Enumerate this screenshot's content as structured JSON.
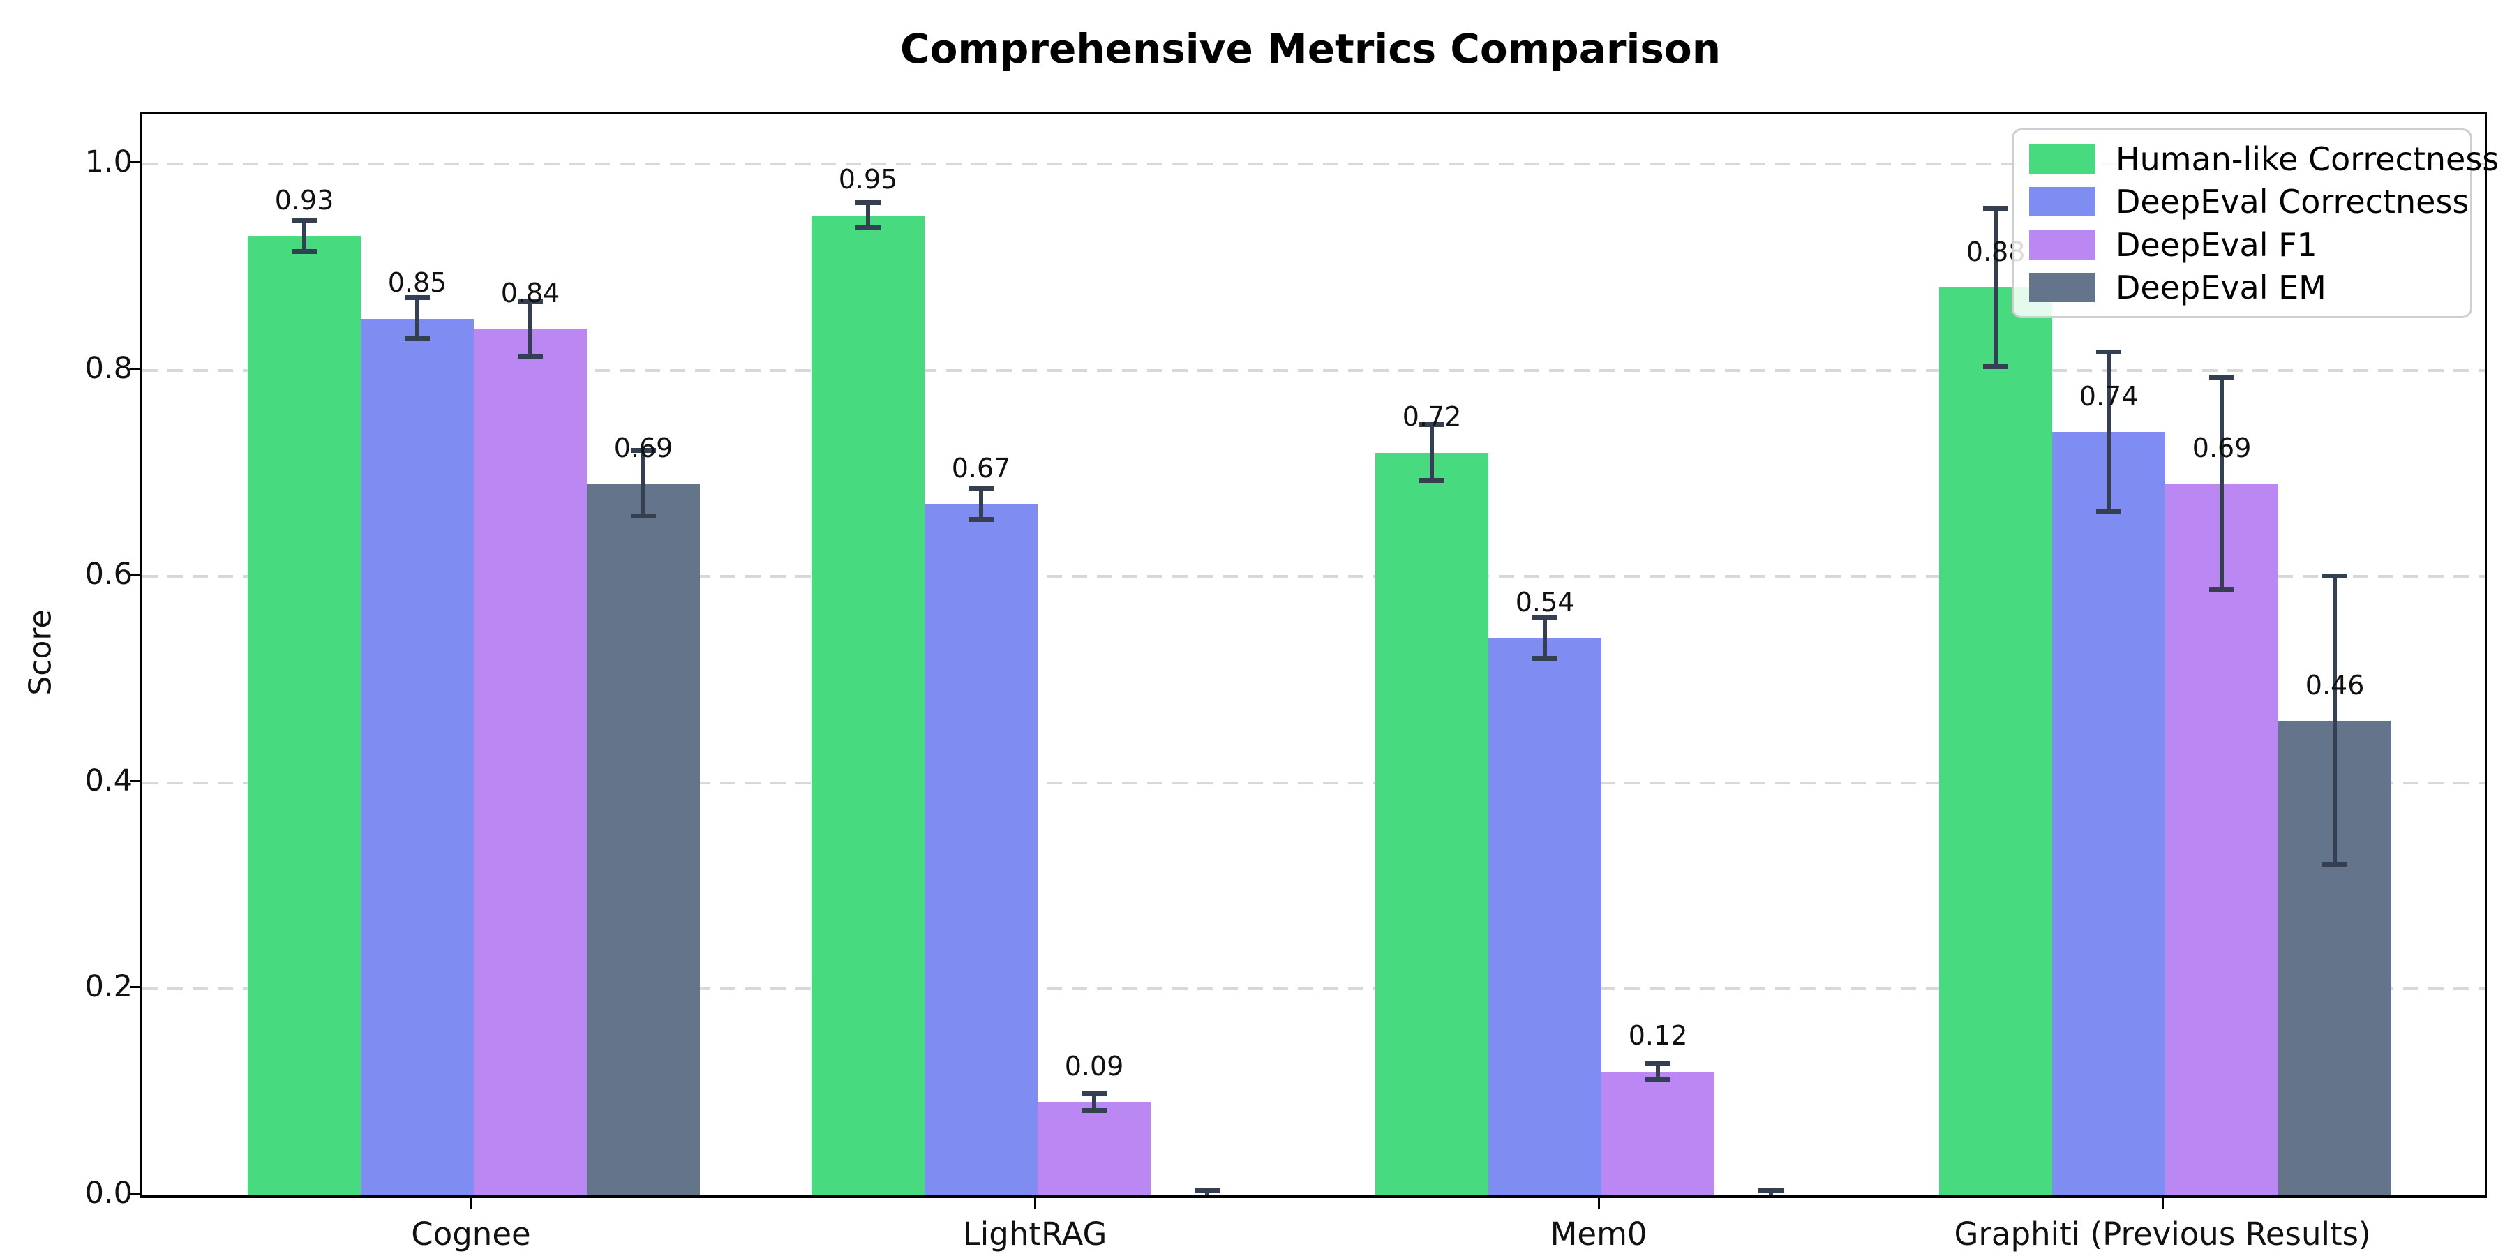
{
  "title": "Comprehensive Metrics Comparison",
  "ylabel": "Score",
  "chart_data": {
    "type": "bar",
    "categories": [
      "Cognee",
      "LightRAG",
      "Mem0",
      "Graphiti (Previous Results)"
    ],
    "series": [
      {
        "name": "Human-like Correctness",
        "color": "#48da7f",
        "values": [
          0.93,
          0.95,
          0.72,
          0.88
        ],
        "errors": [
          0.015,
          0.012,
          0.027,
          0.077
        ],
        "labels": [
          "0.93",
          "0.95",
          "0.72",
          "0.88"
        ]
      },
      {
        "name": "DeepEval Correctness",
        "color": "#7f8cf2",
        "values": [
          0.85,
          0.67,
          0.54,
          0.74
        ],
        "errors": [
          0.02,
          0.015,
          0.02,
          0.077
        ],
        "labels": [
          "0.85",
          "0.67",
          "0.54",
          "0.74"
        ]
      },
      {
        "name": "DeepEval F1",
        "color": "#bb87f2",
        "values": [
          0.84,
          0.09,
          0.12,
          0.69
        ],
        "errors": [
          0.027,
          0.008,
          0.008,
          0.103
        ],
        "labels": [
          "0.84",
          "0.09",
          "0.12",
          "0.69"
        ]
      },
      {
        "name": "DeepEval EM",
        "color": "#64748b",
        "values": [
          0.69,
          0.0,
          0.0,
          0.46
        ],
        "errors": [
          0.032,
          0.004,
          0.004,
          0.14
        ],
        "labels": [
          "0.69",
          "",
          "",
          "0.46"
        ]
      }
    ],
    "ytick_labels": [
      "0.0",
      "0.2",
      "0.4",
      "0.6",
      "0.8",
      "1.0"
    ],
    "yticks": [
      0.0,
      0.2,
      0.4,
      0.6,
      0.8,
      1.0
    ],
    "ylim": [
      0,
      1.049
    ],
    "grid": "horizontal-dashed",
    "gridline_color": "#d8d8d8",
    "errorbar_color": "#344051",
    "legend_position": "upper right",
    "title": "Comprehensive Metrics Comparison",
    "xlabel": "",
    "ylabel": "Score"
  }
}
